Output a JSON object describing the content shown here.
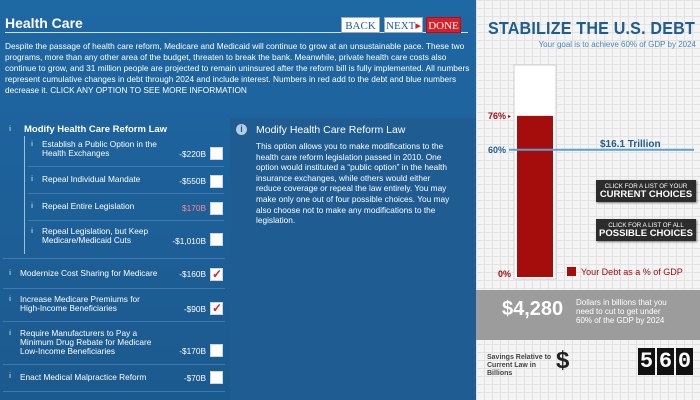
{
  "header": {
    "section_title": "Health Care",
    "back_label": "BACK",
    "next_label": "NEXT",
    "next_arrow": "▸",
    "done_label": "DONE"
  },
  "intro": "Despite the passage of health care reform, Medicare and Medicaid will continue to grow at an unsustainable pace. These two programs, more than any other area of the budget, threaten to break the bank. Meanwhile, private health care costs also continue to grow, and 31 million people are projected to remain uninsured after the reform bill is fully implemented. All numbers represent cumulative changes in debt through 2024 and include interest. Numbers in red add to the debt and blue numbers decrease it. CLICK ANY OPTION TO SEE MORE INFORMATION",
  "group": {
    "title": "Modify Health Care Reform Law",
    "sub_options": [
      {
        "label": "Establish a Public Option in the Health Exchanges",
        "value": "-$220B",
        "red": false,
        "checked": false
      },
      {
        "label": "Repeal Individual Mandate",
        "value": "-$550B",
        "red": false,
        "checked": false
      },
      {
        "label": "Repeal Entire Legislation",
        "value": "$170B",
        "red": true,
        "checked": false
      },
      {
        "label": "Repeal Legislation, but Keep Medicare/Medicaid Cuts",
        "value": "-$1,010B",
        "red": false,
        "checked": false
      }
    ]
  },
  "options": [
    {
      "label": "Modernize Cost Sharing for Medicare",
      "value": "-$160B",
      "red": false,
      "checked": true
    },
    {
      "label": "Increase Medicare Premiums for High-Income Beneficiaries",
      "value": "-$90B",
      "red": false,
      "checked": true
    },
    {
      "label": "Require Manufacturers to Pay a Minimum Drug Rebate for Medicare Low-Income Beneficiaries",
      "value": "-$170B",
      "red": false,
      "checked": false
    },
    {
      "label": "Enact Medical Malpractice Reform",
      "value": "-$70B",
      "red": false,
      "checked": false
    }
  ],
  "info": {
    "title": "Modify Health Care Reform Law",
    "body": "This option allows you to make modifications to the health care reform legislation passed in 2010. One option would instituted a “public option” in the health insurance exchanges, while others would either reduce coverage or repeal the law entirely. You may make only one out of four possible choices. You may also choose not to make any modifications to the legislation."
  },
  "sidebar": {
    "title": "STABILIZE THE U.S. DEBT",
    "subtitle": "Your goal is to achieve 60% of GDP by 2024",
    "current_pct_label": "76%",
    "goal_pct_label": "60%",
    "zero_label": "0%",
    "goal_amount": "$16.1 Trillion",
    "legend_label": "Your Debt as a % of GDP",
    "btn_current_small": "CLICK FOR A LIST OF YOUR",
    "btn_current_big": "CURRENT CHOICES",
    "btn_possible_small": "CLICK FOR A LIST OF ALL",
    "btn_possible_big": "POSSIBLE CHOICES",
    "needed_value": "$4,280",
    "needed_desc": "Dollars in billions that you need to cut to get under 60% of the GDP by 2024",
    "savings_label": "Savings Relative to Current Law in Billions",
    "savings_digits": [
      "5",
      "6",
      "0"
    ]
  },
  "chart_data": {
    "type": "bar",
    "title": "",
    "categories": [
      ""
    ],
    "series": [
      {
        "name": "Your Debt as a % of GDP",
        "values": [
          76
        ]
      }
    ],
    "goal_line": 60,
    "ylim": [
      0,
      100
    ],
    "tick_labels": [
      "0%",
      "60%",
      "76%"
    ],
    "colors": {
      "bar": "#a50d0d",
      "goal": "#5aa0d2"
    }
  },
  "colors": {
    "panel_blue": "#1d5f97",
    "title_blue": "#1f5c92",
    "done_red": "#d71f27"
  }
}
